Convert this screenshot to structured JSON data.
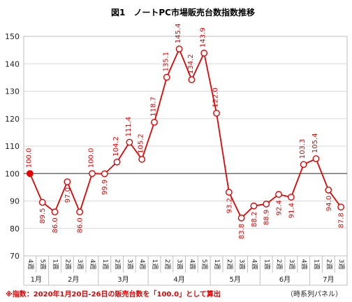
{
  "chart_data": {
    "type": "line",
    "title": "図1　ノートPC市場販売台数指数推移",
    "ylim": [
      70,
      150
    ],
    "yticks": [
      70,
      80,
      90,
      100,
      110,
      120,
      130,
      140,
      150
    ],
    "grid": "horizontal",
    "reference_line": 100,
    "week_labels": [
      "4週",
      "5週",
      "1週",
      "2週",
      "3週",
      "4週",
      "1週",
      "2週",
      "3週",
      "4週",
      "1週",
      "2週",
      "3週",
      "4週",
      "5週",
      "1週",
      "2週",
      "3週",
      "4週",
      "1週",
      "2週",
      "3週",
      "4週",
      "1週",
      "2週",
      "3週"
    ],
    "months": [
      {
        "label": "1月",
        "start": 0,
        "end": 1
      },
      {
        "label": "2月",
        "start": 2,
        "end": 5
      },
      {
        "label": "3月",
        "start": 6,
        "end": 9
      },
      {
        "label": "4月",
        "start": 10,
        "end": 14
      },
      {
        "label": "5月",
        "start": 15,
        "end": 18
      },
      {
        "label": "6月",
        "start": 19,
        "end": 22
      },
      {
        "label": "7月",
        "start": 23,
        "end": 25
      }
    ],
    "values": [
      100.0,
      89.5,
      86.0,
      97.0,
      86.0,
      100.0,
      99.9,
      104.2,
      111.4,
      105.2,
      118.7,
      135.1,
      145.4,
      134.2,
      143.9,
      122.0,
      93.2,
      83.8,
      88.2,
      88.9,
      92.4,
      91.4,
      103.3,
      105.4,
      94.0,
      87.8
    ],
    "data_labels": [
      "100.0",
      "89.5",
      "86.0",
      "97.0",
      "86.0",
      "100.0",
      "99.9",
      "104.2",
      "111.4",
      "105.2",
      "118.7",
      "135.1",
      "145.4",
      "134.2",
      "143.9",
      "122.0",
      "93.2",
      "83.8",
      "88.2",
      "88.9",
      "92.4",
      "91.4",
      "103.3",
      "105.4",
      "94.0",
      "87.8"
    ],
    "label_position": [
      "above",
      "below",
      "below",
      "below",
      "below",
      "above",
      "below",
      "above",
      "above",
      "above",
      "above",
      "above",
      "above",
      "above",
      "above",
      "above",
      "below",
      "below",
      "below",
      "below",
      "below",
      "below",
      "above",
      "above",
      "below",
      "below"
    ],
    "series_color": "#e60000",
    "first_point_filled": true
  },
  "footnote": "※指数：2020年1月20日-26日の販売台数を「100.0」として算出",
  "source": "（時系列パネル）"
}
